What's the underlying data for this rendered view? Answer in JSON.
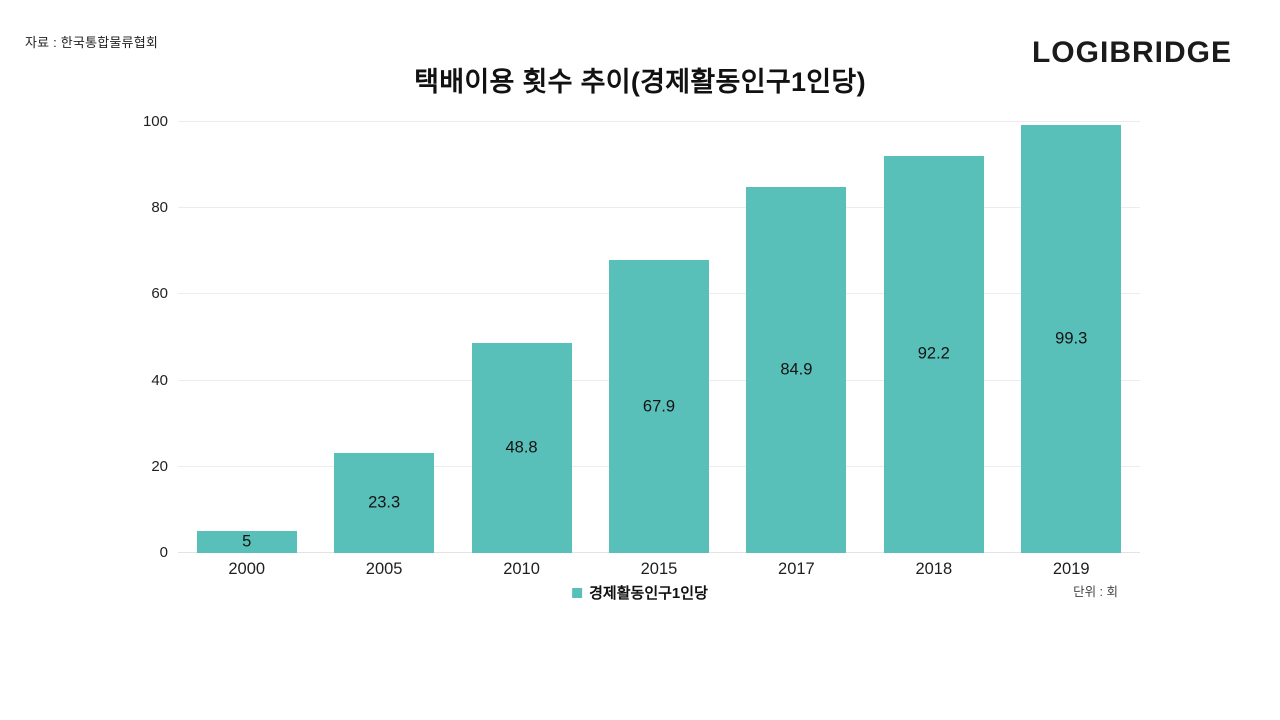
{
  "header": {
    "source": "자료 : 한국통합물류협회",
    "logo": "LOGIBRIDGE"
  },
  "chart_data": {
    "type": "bar",
    "title": "택배이용 횟수 추이(경제활동인구1인당)",
    "categories": [
      "2000",
      "2005",
      "2010",
      "2015",
      "2017",
      "2018",
      "2019"
    ],
    "values": [
      5,
      23.3,
      48.8,
      67.9,
      84.9,
      92.2,
      99.3
    ],
    "value_labels": [
      "5",
      "23.3",
      "48.8",
      "67.9",
      "84.9",
      "92.2",
      "99.3"
    ],
    "series_name": "경제활동인구1인당",
    "unit_note": "단위 : 회",
    "xlabel": "",
    "ylabel": "",
    "ylim": [
      0,
      100
    ],
    "yticks": [
      0,
      20,
      40,
      60,
      80,
      100
    ],
    "grid": true,
    "legend_position": "bottom",
    "bar_color": "#58C0B9",
    "grid_color": "#ececec",
    "axis_line_color": "#e3e3e3"
  }
}
